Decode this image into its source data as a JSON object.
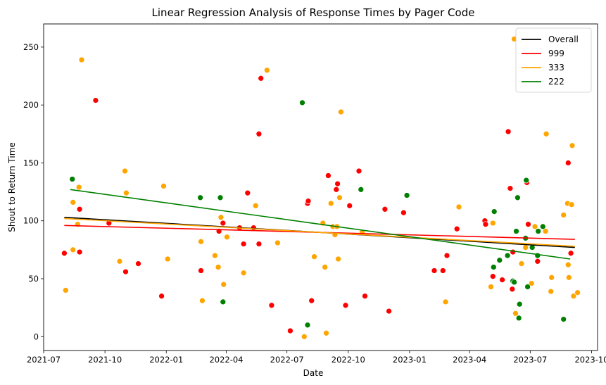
{
  "chart_data": {
    "type": "scatter",
    "title": "Linear Regression Analysis of Response Times by Pager Code",
    "xlabel": "Date",
    "ylabel": "Shout to Return Time",
    "x_type": "date",
    "xlim": [
      "2021-07-01",
      "2023-10-10"
    ],
    "ylim": [
      -12,
      270
    ],
    "x_ticks": [
      "2021-07-01",
      "2021-10-01",
      "2022-01-01",
      "2022-04-01",
      "2022-07-01",
      "2022-10-01",
      "2023-01-01",
      "2023-04-01",
      "2023-07-01",
      "2023-10-01"
    ],
    "x_tick_labels": [
      "2021-07",
      "2021-10",
      "2022-01",
      "2022-04",
      "2022-07",
      "2022-10",
      "2023-01",
      "2023-04",
      "2023-07",
      "2023-10"
    ],
    "y_ticks": [
      0,
      50,
      100,
      150,
      200,
      250
    ],
    "y_tick_labels": [
      "0",
      "50",
      "100",
      "150",
      "200",
      "250"
    ],
    "grid": false,
    "legend_position": "top-right",
    "lines": [
      {
        "name": "Overall",
        "color": "#000000",
        "start": [
          "2021-08-01",
          103
        ],
        "end": [
          "2023-09-06",
          77
        ]
      },
      {
        "name": "999",
        "color": "#ff0000",
        "start": [
          "2021-08-01",
          96
        ],
        "end": [
          "2023-09-06",
          84
        ]
      },
      {
        "name": "333",
        "color": "#ffa500",
        "start": [
          "2021-08-01",
          102
        ],
        "end": [
          "2023-09-06",
          78
        ]
      },
      {
        "name": "222",
        "color": "#008000",
        "start": [
          "2021-08-10",
          127
        ],
        "end": [
          "2023-08-30",
          67
        ]
      }
    ],
    "series": [
      {
        "name": "999",
        "color": "#ff0000",
        "points": [
          [
            "2021-08-01",
            72
          ],
          [
            "2021-08-24",
            110
          ],
          [
            "2021-08-24",
            73
          ],
          [
            "2021-09-17",
            204
          ],
          [
            "2021-10-07",
            98
          ],
          [
            "2021-11-01",
            56
          ],
          [
            "2021-11-20",
            63
          ],
          [
            "2021-12-25",
            35
          ],
          [
            "2022-02-22",
            57
          ],
          [
            "2022-03-21",
            91
          ],
          [
            "2022-03-27",
            98
          ],
          [
            "2022-04-21",
            94
          ],
          [
            "2022-04-27",
            80
          ],
          [
            "2022-05-03",
            124
          ],
          [
            "2022-05-12",
            94
          ],
          [
            "2022-05-20",
            80
          ],
          [
            "2022-05-20",
            175
          ],
          [
            "2022-05-23",
            223
          ],
          [
            "2022-06-08",
            27
          ],
          [
            "2022-07-06",
            5
          ],
          [
            "2022-08-01",
            115
          ],
          [
            "2022-08-02",
            117
          ],
          [
            "2022-08-07",
            31
          ],
          [
            "2022-09-01",
            139
          ],
          [
            "2022-09-13",
            127
          ],
          [
            "2022-09-15",
            132
          ],
          [
            "2022-09-27",
            27
          ],
          [
            "2022-10-03",
            113
          ],
          [
            "2022-10-17",
            143
          ],
          [
            "2022-10-26",
            35
          ],
          [
            "2022-11-25",
            110
          ],
          [
            "2022-12-01",
            22
          ],
          [
            "2022-12-23",
            107
          ],
          [
            "2023-02-07",
            57
          ],
          [
            "2023-02-20",
            57
          ],
          [
            "2023-02-26",
            70
          ],
          [
            "2023-03-13",
            93
          ],
          [
            "2023-04-24",
            100
          ],
          [
            "2023-04-25",
            97
          ],
          [
            "2023-05-06",
            52
          ],
          [
            "2023-05-20",
            49
          ],
          [
            "2023-05-29",
            177
          ],
          [
            "2023-06-01",
            128
          ],
          [
            "2023-06-04",
            41
          ],
          [
            "2023-06-05",
            73
          ],
          [
            "2023-06-26",
            133
          ],
          [
            "2023-06-28",
            97
          ],
          [
            "2023-07-12",
            65
          ],
          [
            "2023-08-27",
            150
          ],
          [
            "2023-08-31",
            72
          ]
        ]
      },
      {
        "name": "333",
        "color": "#ffa500",
        "points": [
          [
            "2021-08-03",
            40
          ],
          [
            "2021-08-14",
            116
          ],
          [
            "2021-08-14",
            75
          ],
          [
            "2021-08-21",
            97
          ],
          [
            "2021-08-23",
            129
          ],
          [
            "2021-08-27",
            239
          ],
          [
            "2021-10-23",
            65
          ],
          [
            "2021-10-31",
            143
          ],
          [
            "2021-11-02",
            124
          ],
          [
            "2021-12-28",
            130
          ],
          [
            "2022-01-03",
            67
          ],
          [
            "2022-02-22",
            82
          ],
          [
            "2022-02-24",
            31
          ],
          [
            "2022-03-15",
            70
          ],
          [
            "2022-03-20",
            60
          ],
          [
            "2022-03-24",
            103
          ],
          [
            "2022-03-28",
            45
          ],
          [
            "2022-04-02",
            86
          ],
          [
            "2022-04-27",
            55
          ],
          [
            "2022-05-15",
            113
          ],
          [
            "2022-06-01",
            230
          ],
          [
            "2022-06-17",
            81
          ],
          [
            "2022-07-27",
            0
          ],
          [
            "2022-08-11",
            69
          ],
          [
            "2022-08-24",
            98
          ],
          [
            "2022-08-27",
            60
          ],
          [
            "2022-08-29",
            3
          ],
          [
            "2022-09-05",
            115
          ],
          [
            "2022-09-08",
            95
          ],
          [
            "2022-09-11",
            88
          ],
          [
            "2022-09-14",
            95
          ],
          [
            "2022-09-16",
            67
          ],
          [
            "2022-09-18",
            120
          ],
          [
            "2022-09-20",
            194
          ],
          [
            "2022-10-22",
            90
          ],
          [
            "2023-02-24",
            30
          ],
          [
            "2023-03-16",
            112
          ],
          [
            "2023-05-03",
            43
          ],
          [
            "2023-05-06",
            98
          ],
          [
            "2023-06-07",
            257
          ],
          [
            "2023-06-09",
            20
          ],
          [
            "2023-06-18",
            63
          ],
          [
            "2023-06-24",
            77
          ],
          [
            "2023-07-03",
            46
          ],
          [
            "2023-07-08",
            95
          ],
          [
            "2023-07-24",
            91
          ],
          [
            "2023-07-25",
            175
          ],
          [
            "2023-08-01",
            39
          ],
          [
            "2023-08-02",
            51
          ],
          [
            "2023-08-20",
            105
          ],
          [
            "2023-08-26",
            115
          ],
          [
            "2023-08-27",
            62
          ],
          [
            "2023-08-28",
            51
          ],
          [
            "2023-09-01",
            114
          ],
          [
            "2023-09-02",
            165
          ],
          [
            "2023-09-04",
            35
          ],
          [
            "2023-09-10",
            38
          ]
        ]
      },
      {
        "name": "222",
        "color": "#008000",
        "points": [
          [
            "2021-08-13",
            136
          ],
          [
            "2022-02-21",
            120
          ],
          [
            "2022-03-23",
            120
          ],
          [
            "2022-03-27",
            30
          ],
          [
            "2022-07-24",
            202
          ],
          [
            "2022-08-01",
            10
          ],
          [
            "2022-10-20",
            127
          ],
          [
            "2022-12-28",
            122
          ],
          [
            "2023-05-07",
            60
          ],
          [
            "2023-05-08",
            108
          ],
          [
            "2023-05-16",
            66
          ],
          [
            "2023-05-28",
            70
          ],
          [
            "2023-06-05",
            48
          ],
          [
            "2023-06-07",
            47
          ],
          [
            "2023-06-10",
            91
          ],
          [
            "2023-06-12",
            120
          ],
          [
            "2023-06-14",
            16
          ],
          [
            "2023-06-15",
            28
          ],
          [
            "2023-06-24",
            85
          ],
          [
            "2023-06-25",
            135
          ],
          [
            "2023-06-27",
            43
          ],
          [
            "2023-07-04",
            77
          ],
          [
            "2023-07-12",
            70
          ],
          [
            "2023-07-13",
            91
          ],
          [
            "2023-07-20",
            95
          ],
          [
            "2023-08-20",
            15
          ]
        ]
      }
    ]
  }
}
